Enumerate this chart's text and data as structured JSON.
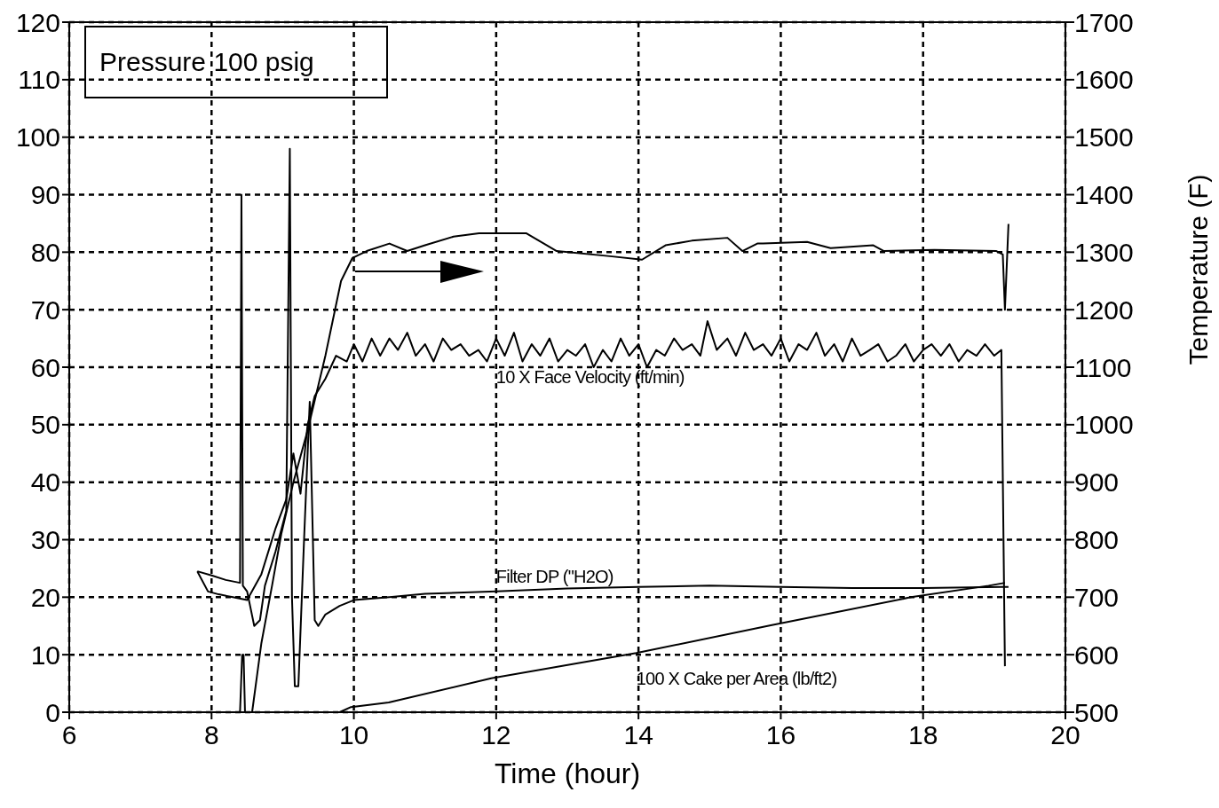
{
  "chart_data": {
    "type": "line",
    "xlabel": "Time (hour)",
    "y2label": "Temperature (F)",
    "annotations": [
      "Pressure 100 psig"
    ],
    "xlim": [
      6,
      20
    ],
    "xticks": [
      6,
      8,
      10,
      12,
      14,
      16,
      18,
      20
    ],
    "ylim": [
      0,
      120
    ],
    "yticks": [
      0,
      10,
      20,
      30,
      40,
      50,
      60,
      70,
      80,
      90,
      100,
      110,
      120
    ],
    "y2lim": [
      500,
      1700
    ],
    "y2ticks": [
      500,
      600,
      700,
      800,
      900,
      1000,
      1100,
      1200,
      1300,
      1400,
      1500,
      1600,
      1700
    ],
    "grid": true,
    "marker": "none",
    "line_style": "solid",
    "series": [
      {
        "color": "#000000",
        "axis": "y2",
        "x": [
          7.45,
          8.4,
          8.43,
          8.45,
          8.47,
          8.57,
          8.7,
          8.85,
          8.98,
          9.15,
          9.35,
          9.6,
          9.82,
          9.98,
          10.18,
          10.5,
          10.75,
          11.0,
          11.4,
          11.76,
          12.42,
          12.67,
          12.85,
          13.6,
          14.05,
          14.38,
          14.75,
          15.25,
          15.46,
          15.67,
          15.75,
          16.37,
          16.7,
          17.3,
          17.45,
          18.16,
          19.03,
          19.12,
          19.15,
          19.2
        ],
        "values": [
          500,
          500,
          600,
          600,
          500,
          500,
          620,
          720,
          810,
          900,
          990,
          1120,
          1250,
          1290,
          1302,
          1315,
          1302,
          1312,
          1327,
          1333,
          1333,
          1315,
          1302,
          1293,
          1287,
          1312,
          1320,
          1325,
          1302,
          1315,
          1315,
          1318,
          1307,
          1312,
          1302,
          1304,
          1302,
          1296,
          1200,
          1349
        ]
      },
      {
        "name": "10 X Face Velocity (ft/min)",
        "color": "#000000",
        "x": [
          7.8,
          7.95,
          8.1,
          8.3,
          8.5,
          8.7,
          8.9,
          9.05,
          9.15,
          9.25,
          9.35,
          9.45,
          9.6,
          9.75,
          9.9,
          10.0,
          10.12,
          10.25,
          10.37,
          10.5,
          10.62,
          10.75,
          10.87,
          11.0,
          11.12,
          11.25,
          11.37,
          11.5,
          11.62,
          11.75,
          11.87,
          12.0,
          12.12,
          12.25,
          12.37,
          12.5,
          12.62,
          12.75,
          12.87,
          13.0,
          13.12,
          13.25,
          13.37,
          13.5,
          13.62,
          13.75,
          13.87,
          14.0,
          14.12,
          14.25,
          14.37,
          14.5,
          14.62,
          14.75,
          14.87,
          14.97,
          15.1,
          15.25,
          15.37,
          15.5,
          15.62,
          15.75,
          15.87,
          16.0,
          16.12,
          16.25,
          16.37,
          16.5,
          16.62,
          16.75,
          16.87,
          17.0,
          17.12,
          17.25,
          17.37,
          17.5,
          17.62,
          17.75,
          17.87,
          18.0,
          18.12,
          18.25,
          18.37,
          18.5,
          18.62,
          18.75,
          18.87,
          19.0,
          19.1,
          19.15
        ],
        "values": [
          24.5,
          21,
          20.5,
          20,
          19.5,
          24,
          32,
          37,
          45,
          38,
          50,
          55,
          58,
          62,
          61,
          64,
          61,
          65,
          62,
          65,
          63,
          66,
          62,
          64,
          61,
          65,
          63,
          64,
          62,
          63,
          61,
          65,
          62,
          66,
          61,
          64,
          62,
          65,
          61,
          63,
          62,
          64,
          60,
          63,
          61,
          65,
          62,
          64,
          60,
          63,
          62,
          65,
          63,
          64,
          62,
          68,
          63,
          65,
          62,
          66,
          63,
          64,
          62,
          65,
          61,
          64,
          63,
          66,
          62,
          64,
          61,
          65,
          62,
          63,
          64,
          61,
          62,
          64,
          61,
          63,
          64,
          62,
          64,
          61,
          63,
          62,
          64,
          62,
          63,
          8
        ]
      },
      {
        "name": "Filter DP (\"H2O)",
        "color": "#000000",
        "x": [
          7.8,
          8.0,
          8.2,
          8.4,
          8.42,
          8.44,
          8.5,
          8.6,
          8.68,
          8.75,
          8.9,
          9.05,
          9.1,
          9.13,
          9.17,
          9.22,
          9.3,
          9.38,
          9.45,
          9.5,
          9.6,
          9.8,
          10.0,
          10.5,
          11.0,
          12.0,
          13.0,
          14.0,
          15.0,
          16.0,
          17.0,
          18.0,
          19.1,
          19.2
        ],
        "values": [
          24.5,
          23.8,
          23,
          22.5,
          90,
          22,
          21,
          15,
          16,
          22,
          28,
          35,
          98,
          20,
          4.5,
          4.5,
          30,
          54,
          16,
          15,
          17,
          18.5,
          19.5,
          20,
          20.6,
          21,
          21.5,
          21.8,
          22,
          21.8,
          21.6,
          21.6,
          21.8,
          21.8
        ]
      },
      {
        "name": "100 X Cake per Area (lb/ft2)",
        "color": "#000000",
        "x": [
          9.8,
          9.96,
          10.49,
          11.93,
          13.97,
          15.86,
          17.83,
          18.92,
          19.15
        ],
        "values": [
          0,
          0.9,
          1.7,
          5.9,
          10.3,
          15.1,
          20,
          22,
          22.5
        ]
      }
    ]
  }
}
